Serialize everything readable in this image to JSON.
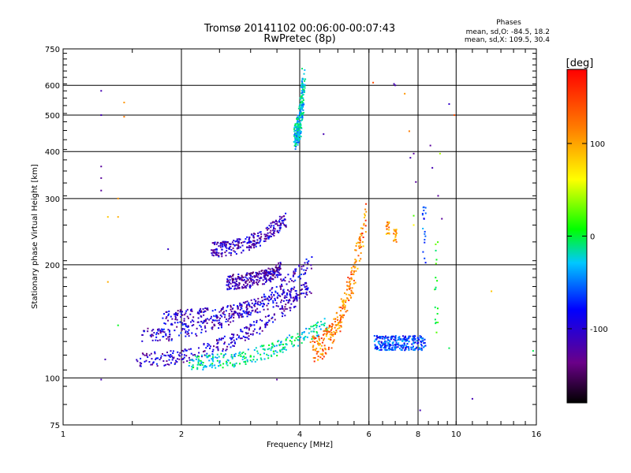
{
  "header": {
    "title_line1": "Tromsø 20141102 00:06:00-00:07:43",
    "title_line2": "RwPretec (8p)"
  },
  "phases": {
    "heading": "Phases",
    "line_o": "mean, sd,O: -84.5, 18.2",
    "line_x": "mean, sd,X: 109.5, 30.4"
  },
  "chart_data": {
    "type": "scatter",
    "title": "Tromsø 20141102 00:06:00-00:07:43",
    "subtitle": "RwPretec (8p)",
    "xlabel": "Frequency [MHz]",
    "ylabel": "Stationary phase Virtual Height [km]",
    "x_scale": "log",
    "y_scale": "log",
    "xlim": [
      1,
      16
    ],
    "ylim": [
      75,
      750
    ],
    "x_ticks": [
      1,
      2,
      4,
      6,
      8,
      10,
      16
    ],
    "x_tick_labels": [
      "1",
      "2",
      "4",
      "6",
      "8",
      "10",
      "16"
    ],
    "y_ticks": [
      75,
      100,
      200,
      300,
      400,
      500,
      600,
      750
    ],
    "y_tick_labels": [
      "75",
      "100",
      "200",
      "300",
      "400",
      "500",
      "600",
      "750"
    ],
    "x_gridlines": [
      2,
      4,
      6,
      8,
      10
    ],
    "y_gridlines": [
      100,
      200,
      300,
      400,
      500,
      600
    ],
    "grid": true,
    "colorbar": {
      "label": "[deg]",
      "ticks": [
        100,
        0,
        -100
      ],
      "tick_labels": [
        "100",
        "0",
        "-100"
      ],
      "range": [
        -180,
        180
      ],
      "colors": [
        "#000000",
        "#6a0088",
        "#0000ff",
        "#00c8ff",
        "#00ff00",
        "#ffff00",
        "#ff8000",
        "#ff0000"
      ]
    },
    "traces": [
      {
        "note": "O-mode E/F1 lower trace",
        "x_range": [
          1.55,
          4.0
        ],
        "y_start": 112,
        "y_end": 165,
        "phase": -100
      },
      {
        "note": "O-mode F trace upper",
        "x_range": [
          1.55,
          4.3
        ],
        "y_start": 130,
        "y_end": 205,
        "phase": -95
      },
      {
        "note": "O-mode mid trace",
        "x_range": [
          1.8,
          4.3
        ],
        "y_start": 145,
        "y_end": 175,
        "phase": -105
      },
      {
        "note": "X-mode trace",
        "x_range": [
          2.1,
          4.7
        ],
        "y_start": 110,
        "y_end": 140,
        "phase": -10
      },
      {
        "note": "spread F branch",
        "x_range": [
          2.6,
          3.6
        ],
        "y_start": 180,
        "y_end": 195,
        "phase": -110
      },
      {
        "note": "spread F high branch",
        "x_range": [
          2.4,
          3.7
        ],
        "y_start": 220,
        "y_end": 265,
        "phase": -105
      },
      {
        "note": "vertical cusp near 4 MHz",
        "x_range": [
          3.9,
          4.1
        ],
        "y_start": 440,
        "y_end": 640,
        "phase": -20
      },
      {
        "note": "X-mode cusp 4.5-6 MHz",
        "x_range": [
          4.3,
          5.9
        ],
        "y_start": 120,
        "y_end": 270,
        "phase": 130
      },
      {
        "note": "horizontal band near 125 km",
        "x_range": [
          6.2,
          8.3
        ],
        "y_start": 124,
        "y_end": 124,
        "phase": -60
      }
    ]
  }
}
